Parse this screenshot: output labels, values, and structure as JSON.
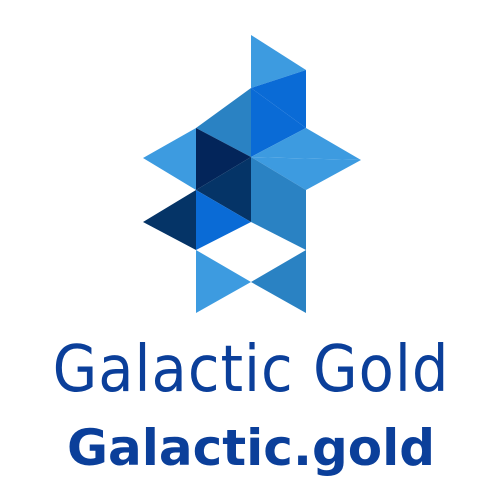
{
  "logo": {
    "brand_name": "Galactic Gold",
    "domain": "Galactic.gold",
    "text_color": "#0b3f9a",
    "mark_colors": {
      "light_blue": "#3d9be0",
      "mid_blue": "#2a82c3",
      "bright_blue": "#0a6bd6",
      "navy": "#053467",
      "dark_navy": "#03255a"
    }
  }
}
